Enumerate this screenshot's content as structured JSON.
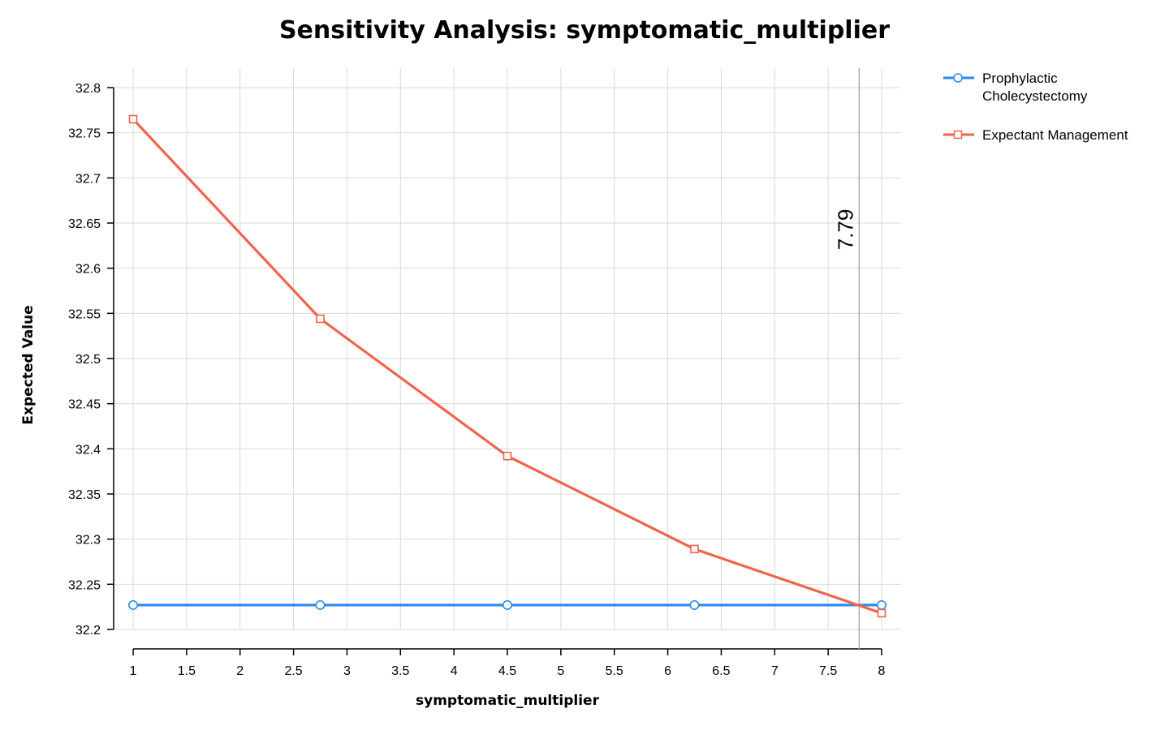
{
  "chart_data": {
    "type": "line",
    "title": "Sensitivity Analysis: symptomatic_multiplier",
    "xlabel": "symptomatic_multiplier",
    "ylabel": "Expected Value",
    "xlim": [
      1,
      8
    ],
    "ylim": [
      32.2,
      32.8
    ],
    "x_ticks": [
      "1",
      "1.5",
      "2",
      "2.5",
      "3",
      "3.5",
      "4",
      "4.5",
      "5",
      "5.5",
      "6",
      "6.5",
      "7",
      "7.5",
      "8"
    ],
    "y_ticks": [
      "32.2",
      "32.25",
      "32.3",
      "32.35",
      "32.4",
      "32.45",
      "32.5",
      "32.55",
      "32.6",
      "32.65",
      "32.7",
      "32.75",
      "32.8"
    ],
    "grid": true,
    "legend_position": "top-right-outside",
    "x": [
      1,
      2.75,
      4.5,
      6.25,
      8
    ],
    "series": [
      {
        "name": "Prophylactic Cholecystectomy",
        "values": [
          32.227,
          32.227,
          32.227,
          32.227,
          32.227
        ],
        "color": "#2a8af0",
        "marker": "circle"
      },
      {
        "name": "Expectant Management",
        "values": [
          32.765,
          32.544,
          32.392,
          32.289,
          32.218
        ],
        "color": "#f0644b",
        "marker": "square"
      }
    ],
    "threshold": {
      "x": 7.79,
      "label": "7.79",
      "color": "#aaaaaa"
    }
  }
}
